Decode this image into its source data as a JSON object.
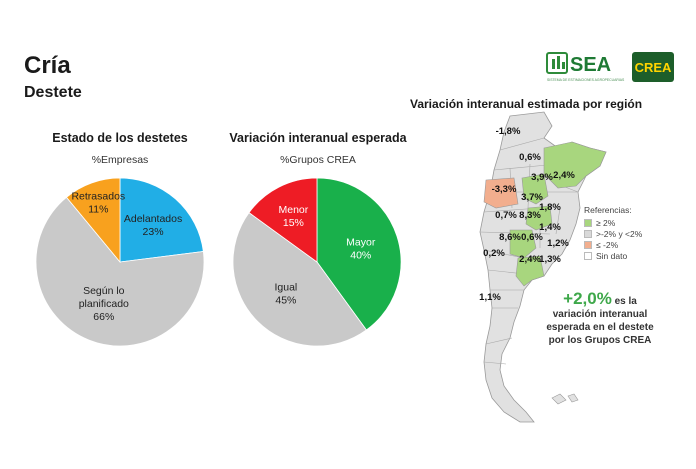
{
  "header": {
    "title": "Cría",
    "subtitle": "Destete"
  },
  "logos": {
    "sea_text": "SEA",
    "sea_subtext": "SISTEMA DE ESTIMACIONES AGROPECUARIAS",
    "crea_text": "CREA"
  },
  "chart_data": [
    {
      "type": "pie",
      "title": "Estado de los destetes",
      "subtitle": "%Empresas",
      "slices": [
        {
          "label": "Adelantados",
          "value": 23,
          "display": "23%",
          "color": "#21aee6"
        },
        {
          "label": "Según lo planificado",
          "value": 66,
          "display": "66%",
          "color": "#c9c9c9"
        },
        {
          "label": "Retrasados",
          "value": 11,
          "display": "11%",
          "color": "#f8a11e"
        }
      ]
    },
    {
      "type": "pie",
      "title": "Variación interanual esperada",
      "subtitle": "%Grupos CREA",
      "slices": [
        {
          "label": "Mayor",
          "value": 40,
          "display": "40%",
          "color": "#19b04b"
        },
        {
          "label": "Igual",
          "value": 45,
          "display": "45%",
          "color": "#c9c9c9"
        },
        {
          "label": "Menor",
          "value": 15,
          "display": "15%",
          "color": "#ee1c25"
        }
      ]
    }
  ],
  "map": {
    "title": "Variación interanual estimada por región",
    "regions": [
      {
        "value": "-1,8%",
        "category": "neutral"
      },
      {
        "value": "0,6%",
        "category": "neutral"
      },
      {
        "value": "-3,3%",
        "category": "low"
      },
      {
        "value": "3,9%",
        "category": "high"
      },
      {
        "value": "2,4%",
        "category": "high"
      },
      {
        "value": "3,7%",
        "category": "high"
      },
      {
        "value": "0,7%",
        "category": "neutral"
      },
      {
        "value": "8,3%",
        "category": "high"
      },
      {
        "value": "1,8%",
        "category": "neutral"
      },
      {
        "value": "1,4%",
        "category": "neutral"
      },
      {
        "value": "8,6%",
        "category": "high"
      },
      {
        "value": "0,6%",
        "category": "neutral"
      },
      {
        "value": "0,2%",
        "category": "neutral"
      },
      {
        "value": "1,2%",
        "category": "neutral"
      },
      {
        "value": "2,4%",
        "category": "high"
      },
      {
        "value": "1,3%",
        "category": "neutral"
      },
      {
        "value": "1,1%",
        "category": "neutral"
      }
    ],
    "legend": {
      "title": "Referencias:",
      "items": [
        {
          "label": "≥ 2%",
          "color": "#a8d67e"
        },
        {
          "label": ">-2% y <2%",
          "color": "#d9d9d9"
        },
        {
          "label": "≤ -2%",
          "color": "#f2ae8e"
        },
        {
          "label": "Sin dato",
          "color": "#ffffff"
        }
      ]
    },
    "highlight": {
      "value": "+2,0%",
      "suffix": "es la",
      "line1": "variación interanual",
      "line2": "esperada en el destete",
      "line3": "por los Grupos CREA"
    }
  }
}
